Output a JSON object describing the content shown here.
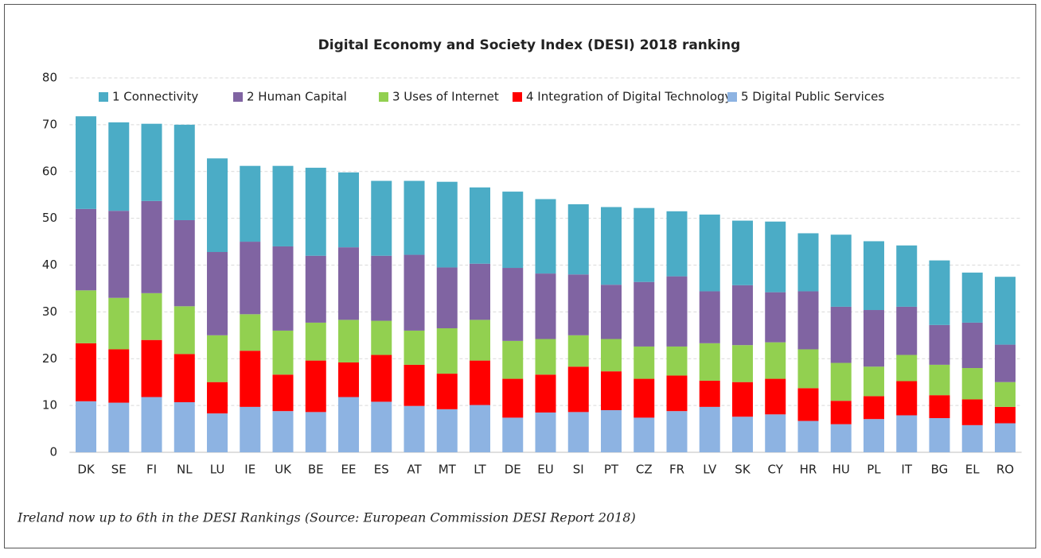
{
  "chart_data": {
    "type": "stacked_bar",
    "title": "Digital Economy and Society Index (DESI) 2018 ranking",
    "caption": "Ireland now up to 6th in the DESI Rankings (Source: European Commission DESI Report 2018)",
    "categories": [
      "DK",
      "SE",
      "FI",
      "NL",
      "LU",
      "IE",
      "UK",
      "BE",
      "EE",
      "ES",
      "AT",
      "MT",
      "LT",
      "DE",
      "EU",
      "SI",
      "PT",
      "CZ",
      "FR",
      "LV",
      "SK",
      "CY",
      "HR",
      "HU",
      "PL",
      "IT",
      "BG",
      "EL",
      "RO"
    ],
    "series": [
      {
        "name": "1 Connectivity",
        "color": "#4bacc6",
        "values": [
          19.8,
          18.9,
          16.5,
          20.4,
          20.0,
          16.2,
          17.2,
          18.8,
          16.0,
          16.0,
          15.8,
          18.3,
          16.3,
          16.3,
          15.9,
          15.0,
          16.6,
          15.8,
          13.9,
          16.4,
          13.8,
          15.1,
          12.4,
          15.4,
          14.7,
          13.1,
          13.8,
          10.7,
          14.5
        ]
      },
      {
        "name": "2 Human Capital",
        "color": "#8064a2",
        "values": [
          17.4,
          18.6,
          19.7,
          18.4,
          17.8,
          15.5,
          18.0,
          14.3,
          15.5,
          13.9,
          16.2,
          13.0,
          12.0,
          15.6,
          14.0,
          13.0,
          11.6,
          13.8,
          15.0,
          11.1,
          12.8,
          10.7,
          12.4,
          12.0,
          12.1,
          10.3,
          8.5,
          9.7,
          8.0
        ]
      },
      {
        "name": "3 Uses of Internet",
        "color": "#92d050",
        "values": [
          11.3,
          11.0,
          10.0,
          10.2,
          10.0,
          7.8,
          9.4,
          8.1,
          9.1,
          7.3,
          7.3,
          9.7,
          8.7,
          8.1,
          7.6,
          6.7,
          6.9,
          6.9,
          6.2,
          8.0,
          7.9,
          7.8,
          8.3,
          8.1,
          6.3,
          5.6,
          6.5,
          6.7,
          5.3
        ]
      },
      {
        "name": "4 Integration of Digital Technology",
        "color": "#ff0000",
        "values": [
          12.4,
          11.4,
          12.2,
          10.3,
          6.7,
          12.0,
          7.8,
          11.0,
          7.4,
          10.0,
          8.8,
          7.6,
          9.5,
          8.3,
          8.1,
          9.7,
          8.3,
          8.3,
          7.6,
          5.6,
          7.4,
          7.6,
          7.0,
          5.0,
          4.9,
          7.3,
          4.9,
          5.5,
          3.5
        ]
      },
      {
        "name": "5 Digital Public Services",
        "color": "#8db3e2",
        "values": [
          10.9,
          10.6,
          11.8,
          10.7,
          8.3,
          9.7,
          8.8,
          8.6,
          11.8,
          10.8,
          9.9,
          9.2,
          10.1,
          7.4,
          8.5,
          8.6,
          9.0,
          7.4,
          8.8,
          9.7,
          7.6,
          8.1,
          6.7,
          6.0,
          7.1,
          7.9,
          7.3,
          5.8,
          6.2
        ]
      }
    ],
    "ylim": [
      0,
      80
    ],
    "yticks": [
      0,
      10,
      20,
      30,
      40,
      50,
      60,
      70,
      80
    ],
    "grid": true,
    "legend": "top"
  }
}
